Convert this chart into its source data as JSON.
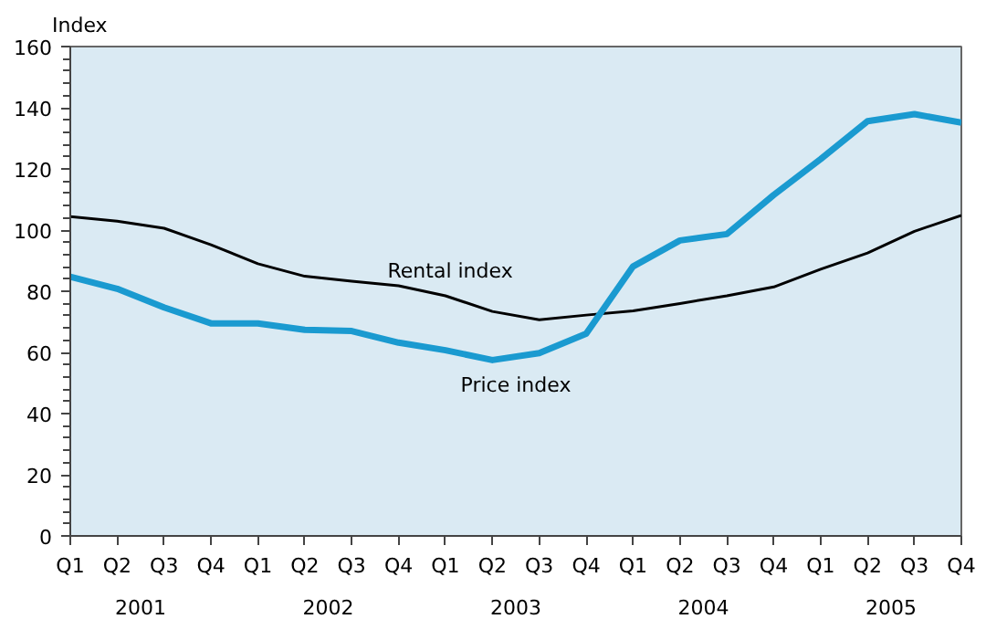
{
  "chart_data": {
    "type": "line",
    "ylabel": "Index",
    "categories": [
      "Q1",
      "Q2",
      "Q3",
      "Q4",
      "Q1",
      "Q2",
      "Q3",
      "Q4",
      "Q1",
      "Q2",
      "Q3",
      "Q4",
      "Q1",
      "Q2",
      "Q3",
      "Q4",
      "Q1",
      "Q2",
      "Q3",
      "Q4"
    ],
    "series": [
      {
        "name": "Rental index",
        "color": "#000000",
        "values": [
          104.4,
          102.9,
          100.6,
          95.2,
          89,
          84.9,
          83.3,
          81.8,
          78.5,
          73.4,
          70.7,
          72.2,
          73.6,
          76,
          78.5,
          81.4,
          87.2,
          92.5,
          99.6,
          104.8
        ]
      },
      {
        "name": "Price index",
        "color": "#1a9ad0",
        "values": [
          84.7,
          80.8,
          74.7,
          69.5,
          69.5,
          67.4,
          67,
          63.2,
          60.7,
          57.5,
          59.8,
          66.1,
          88.1,
          96.6,
          98.7,
          111.5,
          123.2,
          135.6,
          137.9,
          135.1
        ]
      }
    ],
    "ylim": [
      0,
      160
    ],
    "yticks": [
      0,
      20,
      40,
      60,
      80,
      100,
      120,
      140,
      160
    ],
    "annotations": [
      "2001",
      "2002",
      "2003",
      "2004",
      "2005"
    ],
    "grid": false
  }
}
